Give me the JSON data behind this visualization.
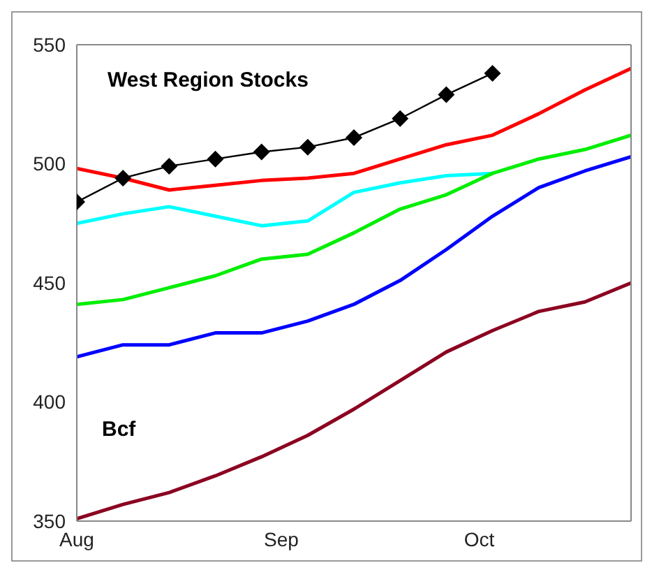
{
  "chart_data": {
    "type": "line",
    "title": "West Region Stocks",
    "ylabel": "Bcf",
    "x": [
      "--08-01",
      "--08-08",
      "--08-15",
      "--08-22",
      "--08-29",
      "--09-05",
      "--09-12",
      "--09-19",
      "--09-26",
      "--10-03",
      "--10-10",
      "--10-17",
      "--10-24"
    ],
    "series": [
      {
        "color": "#000000",
        "marker": "diamond",
        "values": [
          484,
          494,
          499,
          502,
          505,
          507,
          511,
          519,
          529,
          538,
          null,
          null,
          null
        ]
      },
      {
        "color": "#ff0000",
        "values": [
          498,
          494,
          489,
          491,
          493,
          494,
          496,
          502,
          508,
          512,
          521,
          531,
          540
        ]
      },
      {
        "color": "#00ffff",
        "values": [
          475,
          479,
          482,
          478,
          474,
          476,
          488,
          492,
          495,
          496,
          null,
          null,
          null
        ]
      },
      {
        "color": "#00ee00",
        "values": [
          441,
          443,
          448,
          453,
          460,
          462,
          471,
          481,
          487,
          496,
          502,
          506,
          512
        ]
      },
      {
        "color": "#0000ff",
        "values": [
          419,
          424,
          424,
          429,
          429,
          434,
          441,
          451,
          464,
          478,
          490,
          497,
          503
        ]
      },
      {
        "color": "#8b0020",
        "values": [
          351,
          357,
          362,
          369,
          377,
          386,
          397,
          409,
          421,
          430,
          438,
          442,
          450
        ]
      }
    ],
    "ylim": [
      350,
      550
    ],
    "yticks": [
      350,
      400,
      450,
      500,
      550
    ],
    "xlim": [
      "--08-01",
      "--10-24"
    ],
    "xticks": [
      {
        "value": "--08-01",
        "label": "Aug"
      },
      {
        "value": "--09-01",
        "label": "Sep"
      },
      {
        "value": "--10-01",
        "label": "Oct"
      }
    ],
    "grid": false,
    "legend": false
  }
}
